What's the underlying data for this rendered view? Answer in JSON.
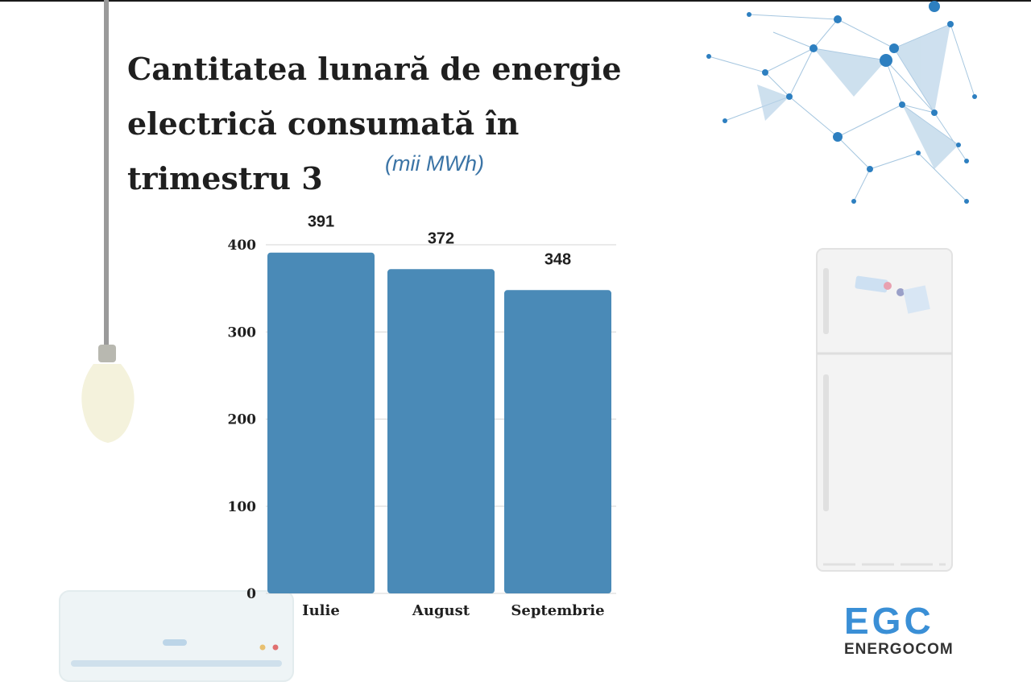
{
  "title": "Cantitatea lunară de energie electrică consumată în trimestru 3",
  "unit": "(mii MWh)",
  "logo": {
    "brand": "EGC",
    "name": "ENERGOCOM"
  },
  "colors": {
    "bar": "#4a8ab7",
    "text": "#1f1f1f",
    "unit": "#3b74a6",
    "logo": "#3a8fd6"
  },
  "chart_data": {
    "type": "bar",
    "categories": [
      "Iulie",
      "August",
      "Septembrie"
    ],
    "values": [
      391,
      372,
      348
    ],
    "yticks": [
      0,
      100,
      200,
      300,
      400
    ],
    "ylim": [
      0,
      400
    ],
    "grid": true,
    "data_labels": true
  }
}
